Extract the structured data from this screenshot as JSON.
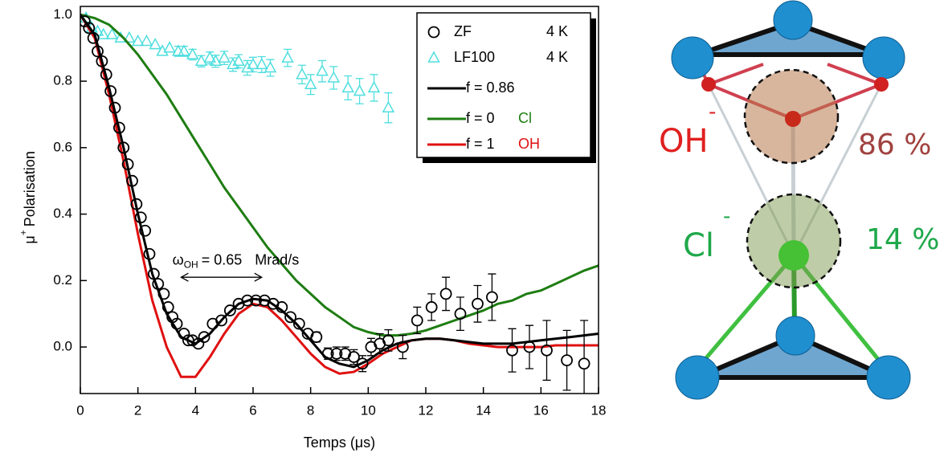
{
  "chart_data": {
    "type": "scatter_line",
    "x_label": "Temps (μs)",
    "y_label_symbol": "μ",
    "y_label_sup": "+",
    "y_label": "Polarisation",
    "xlim": [
      0,
      18
    ],
    "ylim": [
      -0.14,
      1.025
    ],
    "xticks": [
      0,
      2,
      4,
      6,
      8,
      10,
      12,
      14,
      16,
      18
    ],
    "yticks": [
      {
        "value": 0,
        "label": "0.0"
      },
      0.2,
      0.4,
      0.6,
      0.8,
      {
        "value": 1,
        "label": "1.0"
      }
    ],
    "annotation": {
      "symbol": "ω",
      "subscript": "OH",
      "text": "= 0.65",
      "unit": "Mrad/s"
    },
    "series": [
      {
        "name": "ZF",
        "temperature": "4 K",
        "kind": "points",
        "marker": "circle",
        "color": "#000000",
        "x": [
          0.15,
          0.3,
          0.45,
          0.6,
          0.75,
          0.9,
          1.05,
          1.2,
          1.35,
          1.5,
          1.65,
          1.8,
          1.95,
          2.1,
          2.25,
          2.4,
          2.55,
          2.7,
          2.9,
          3.05,
          3.2,
          3.35,
          3.6,
          3.75,
          3.9,
          4.1,
          4.3,
          4.6,
          4.9,
          5.2,
          5.5,
          5.8,
          6.1,
          6.4,
          6.7,
          7.0,
          7.3,
          7.6,
          7.9,
          8.2,
          8.6,
          8.9,
          9.2,
          9.5,
          9.8,
          10.1,
          10.4,
          10.7,
          11.2,
          11.7,
          12.2,
          12.7,
          13.2,
          13.8,
          14.3,
          15.0,
          15.6,
          16.2,
          16.9,
          17.5
        ],
        "values": [
          0.98,
          0.96,
          0.93,
          0.89,
          0.86,
          0.82,
          0.77,
          0.72,
          0.66,
          0.6,
          0.55,
          0.5,
          0.43,
          0.39,
          0.35,
          0.28,
          0.22,
          0.19,
          0.16,
          0.12,
          0.09,
          0.07,
          0.04,
          0.02,
          0.02,
          0.01,
          0.03,
          0.07,
          0.08,
          0.11,
          0.13,
          0.14,
          0.14,
          0.14,
          0.13,
          0.12,
          0.09,
          0.07,
          0.04,
          0.03,
          -0.02,
          -0.02,
          -0.02,
          -0.03,
          -0.05,
          0.0,
          0.01,
          0.02,
          0.0,
          0.08,
          0.12,
          0.16,
          0.1,
          0.13,
          0.15,
          -0.01,
          0.0,
          -0.01,
          -0.04,
          -0.05
        ],
        "errors": [
          0.005,
          0.005,
          0.005,
          0.005,
          0.005,
          0.005,
          0.005,
          0.005,
          0.005,
          0.005,
          0.005,
          0.005,
          0.005,
          0.005,
          0.005,
          0.005,
          0.005,
          0.005,
          0.005,
          0.005,
          0.005,
          0.005,
          0.006,
          0.006,
          0.006,
          0.006,
          0.007,
          0.007,
          0.008,
          0.008,
          0.008,
          0.009,
          0.009,
          0.01,
          0.01,
          0.01,
          0.012,
          0.012,
          0.014,
          0.015,
          0.017,
          0.02,
          0.02,
          0.022,
          0.024,
          0.026,
          0.03,
          0.032,
          0.035,
          0.04,
          0.04,
          0.05,
          0.05,
          0.055,
          0.07,
          0.065,
          0.065,
          0.09,
          0.09,
          0.13
        ]
      },
      {
        "name": "LF100",
        "temperature": "4 K",
        "kind": "points",
        "marker": "triangle",
        "color": "#4fdede",
        "x": [
          0.2,
          0.4,
          0.6,
          0.8,
          1.1,
          1.4,
          1.7,
          2.0,
          2.3,
          2.6,
          2.85,
          3.1,
          3.4,
          3.6,
          3.9,
          4.2,
          4.5,
          4.7,
          5.0,
          5.3,
          5.5,
          5.8,
          6.0,
          6.3,
          6.6,
          7.2,
          7.7,
          8.0,
          8.4,
          8.8,
          9.3,
          9.7,
          10.2,
          10.7
        ],
        "values": [
          0.99,
          0.96,
          0.95,
          0.94,
          0.94,
          0.93,
          0.93,
          0.92,
          0.92,
          0.91,
          0.89,
          0.9,
          0.89,
          0.89,
          0.88,
          0.86,
          0.87,
          0.86,
          0.87,
          0.85,
          0.86,
          0.84,
          0.85,
          0.85,
          0.84,
          0.87,
          0.82,
          0.79,
          0.83,
          0.81,
          0.78,
          0.77,
          0.78,
          0.72
        ],
        "errors": [
          0.01,
          0.01,
          0.01,
          0.01,
          0.01,
          0.01,
          0.01,
          0.012,
          0.012,
          0.012,
          0.014,
          0.014,
          0.015,
          0.015,
          0.016,
          0.017,
          0.018,
          0.018,
          0.02,
          0.02,
          0.02,
          0.022,
          0.022,
          0.024,
          0.025,
          0.026,
          0.028,
          0.03,
          0.032,
          0.034,
          0.036,
          0.038,
          0.04,
          0.045
        ]
      },
      {
        "name": "f = 0.86",
        "kind": "line",
        "color": "#000000",
        "x": [
          0,
          0.5,
          1,
          1.5,
          2,
          2.5,
          3,
          3.5,
          4,
          4.5,
          5,
          5.5,
          6,
          6.5,
          7,
          7.5,
          8,
          8.5,
          9,
          9.5,
          10,
          10.5,
          11,
          11.5,
          12,
          12.5,
          13,
          13.5,
          14,
          14.5,
          15,
          15.5,
          16,
          16.5,
          17,
          17.5,
          18
        ],
        "values": [
          1.0,
          0.94,
          0.78,
          0.6,
          0.4,
          0.22,
          0.1,
          0.03,
          0.01,
          0.04,
          0.09,
          0.13,
          0.145,
          0.14,
          0.11,
          0.07,
          0.02,
          -0.03,
          -0.05,
          -0.06,
          -0.04,
          -0.01,
          0.01,
          0.02,
          0.025,
          0.025,
          0.02,
          0.015,
          0.01,
          0.01,
          0.01,
          0.015,
          0.02,
          0.025,
          0.03,
          0.035,
          0.04
        ]
      },
      {
        "name": "f = 0",
        "tag": "Cl",
        "kind": "line",
        "color": "#1e7d12",
        "x": [
          0,
          0.5,
          1,
          1.5,
          2,
          2.5,
          3,
          3.5,
          4,
          4.5,
          5,
          5.5,
          6,
          6.5,
          7,
          7.5,
          8,
          8.5,
          9,
          9.5,
          10,
          10.5,
          11,
          11.5,
          12,
          12.5,
          13,
          13.5,
          14,
          14.5,
          15,
          15.5,
          16,
          16.5,
          17,
          17.5,
          18
        ],
        "values": [
          1.0,
          0.99,
          0.97,
          0.93,
          0.88,
          0.82,
          0.76,
          0.69,
          0.62,
          0.55,
          0.48,
          0.42,
          0.36,
          0.3,
          0.25,
          0.2,
          0.16,
          0.12,
          0.09,
          0.06,
          0.045,
          0.035,
          0.035,
          0.04,
          0.05,
          0.065,
          0.08,
          0.095,
          0.11,
          0.13,
          0.14,
          0.16,
          0.17,
          0.19,
          0.21,
          0.23,
          0.245
        ]
      },
      {
        "name": "f = 1",
        "tag": "OH",
        "kind": "line",
        "color": "#e01010",
        "x": [
          0,
          0.5,
          1,
          1.5,
          2,
          2.5,
          3,
          3.5,
          4,
          4.5,
          5,
          5.5,
          6,
          6.5,
          7,
          7.5,
          8,
          8.5,
          9,
          9.5,
          10,
          10.5,
          11,
          11.5,
          12,
          12.5,
          13,
          13.5,
          14,
          14.5,
          15,
          15.5,
          16,
          16.5,
          17,
          17.5,
          18
        ],
        "values": [
          1.0,
          0.93,
          0.76,
          0.56,
          0.34,
          0.14,
          0.0,
          -0.09,
          -0.09,
          -0.03,
          0.04,
          0.1,
          0.13,
          0.12,
          0.08,
          0.03,
          -0.02,
          -0.06,
          -0.08,
          -0.075,
          -0.05,
          -0.02,
          0.0,
          0.02,
          0.025,
          0.025,
          0.02,
          0.01,
          0.005,
          0.0,
          0.0,
          0.0,
          0.0,
          0.005,
          0.005,
          0.005,
          0.005
        ]
      }
    ]
  },
  "diagram": {
    "oh_label": "OH",
    "oh_charge": "-",
    "oh_percent": "86 %",
    "cl_label": "Cl",
    "cl_charge": "-",
    "cl_percent": "14 %"
  }
}
